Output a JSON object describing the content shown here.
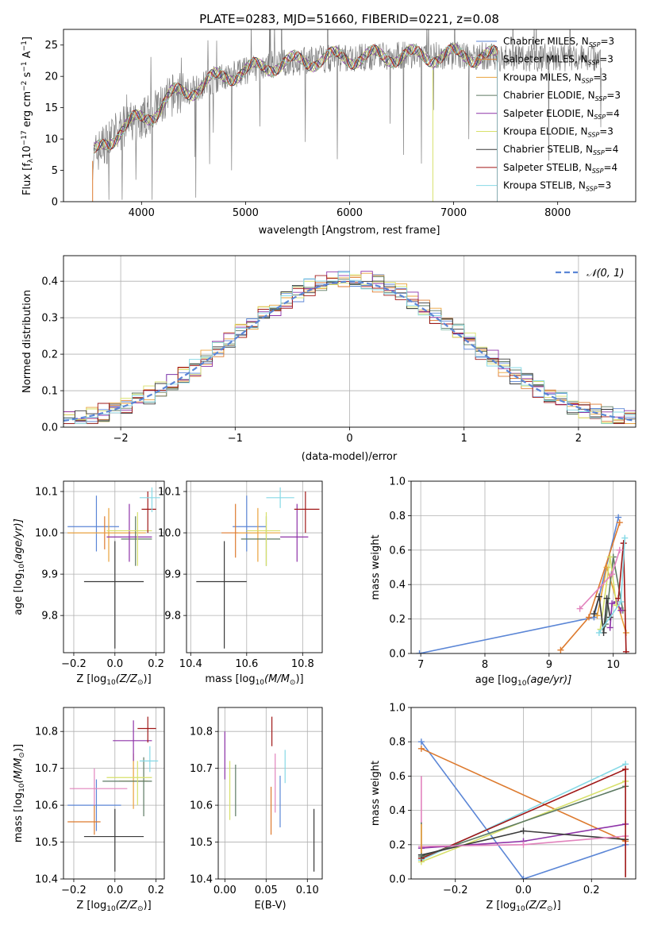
{
  "colors": {
    "Chabrier MILES": "#5b86d6",
    "Salpeter MILES": "#dd7a2e",
    "Kroupa MILES": "#e9a23b",
    "Chabrier ELODIE": "#5d7a63",
    "Salpeter ELODIE": "#8e33a8",
    "Kroupa ELODIE": "#d7e06a",
    "Chabrier STELIB": "#3a3a3a",
    "Salpeter STELIB": "#a01818",
    "Kroupa STELIB": "#86d9e6",
    "data": "#7f7f7f",
    "gauss": "#5b86d6",
    "grid": "#b0b0b0"
  },
  "chart_data": [
    {
      "id": "spectrum",
      "type": "line",
      "title": "PLATE=0283, MJD=51660, FIBERID=0221, z=0.08",
      "xlabel": "wavelength [Angstrom, rest frame]",
      "ylabel_parts": [
        "Flux [f",
        "λ",
        "10",
        "−17",
        " erg cm",
        "−2",
        " s",
        "−1",
        " A",
        "−1",
        "]"
      ],
      "xlim": [
        3250,
        8750
      ],
      "ylim": [
        0,
        27.5
      ],
      "xticks": [
        4000,
        5000,
        6000,
        7000,
        8000
      ],
      "yticks": [
        0,
        5,
        10,
        15,
        20,
        25
      ],
      "grid": false,
      "legend_position": "upper right",
      "legend": [
        {
          "model": "Chabrier MILES",
          "n": "3"
        },
        {
          "model": "Salpeter MILES",
          "n": "3"
        },
        {
          "model": "Kroupa MILES",
          "n": "3"
        },
        {
          "model": "Chabrier ELODIE",
          "n": "3"
        },
        {
          "model": "Salpeter ELODIE",
          "n": "4"
        },
        {
          "model": "Kroupa ELODIE",
          "n": "3"
        },
        {
          "model": "Chabrier STELIB",
          "n": "4"
        },
        {
          "model": "Salpeter STELIB",
          "n": "4"
        },
        {
          "model": "Kroupa STELIB",
          "n": "3"
        }
      ],
      "continuum_x": [
        3530,
        3600,
        3700,
        3800,
        3900,
        4000,
        4100,
        4300,
        4500,
        4700,
        4900,
        5100,
        5300,
        5500,
        5700,
        5900,
        6100,
        6300,
        6500,
        6700,
        6900,
        7100,
        7300,
        7420
      ],
      "continuum_y": [
        7,
        8.5,
        10,
        11.5,
        12.5,
        13.2,
        14,
        17,
        18,
        19.5,
        20.5,
        21.2,
        22,
        22.3,
        22.7,
        23,
        23,
        23.2,
        23.3,
        23.2,
        23.3,
        23.4,
        23.2,
        23
      ],
      "data_x_range": [
        3530,
        8420
      ]
    },
    {
      "id": "residuals",
      "type": "histogram",
      "xlabel": "(data-model)/error",
      "ylabel": "Normed distribution",
      "xlim": [
        -2.5,
        2.5
      ],
      "ylim": [
        0,
        0.47
      ],
      "xticks": [
        -2,
        -1,
        0,
        1,
        2
      ],
      "yticks": [
        0.0,
        0.1,
        0.2,
        0.3,
        0.4
      ],
      "grid": true,
      "legend_position": "upper right",
      "legend": [
        "𝒩(0, 1)"
      ],
      "bin_width": 0.1,
      "bin_start": -2.5,
      "gaussian": {
        "mu": 0,
        "sigma": 1
      }
    },
    {
      "id": "age-vs-z",
      "type": "errorbar",
      "xlabel": "Z [log",
      "xlabel_sub": "10",
      "xlabel_rest": "(Z/Z",
      "xlabel_end": ")]",
      "ylabel": "age  [log",
      "ylabel_sub": "10",
      "ylabel_rest": "(age/yr)]",
      "xlim": [
        -0.25,
        0.24
      ],
      "ylim": [
        9.71,
        10.125
      ],
      "xticks": [
        -0.2,
        0.0,
        0.2
      ],
      "yticks": [
        9.8,
        9.9,
        10.0,
        10.1
      ],
      "grid": true,
      "points": [
        {
          "m": "Chabrier MILES",
          "x": -0.09,
          "xe": [
            -0.23,
            0.02
          ],
          "y": 10.015,
          "ye": [
            9.955,
            10.09
          ]
        },
        {
          "m": "Salpeter MILES",
          "x": -0.05,
          "xe": [
            -0.23,
            0.08
          ],
          "y": 10.0,
          "ye": [
            9.96,
            10.04
          ]
        },
        {
          "m": "Kroupa MILES",
          "x": -0.03,
          "xe": [
            -0.23,
            0.15
          ],
          "y": 10.0,
          "ye": [
            9.93,
            10.06
          ]
        },
        {
          "m": "Chabrier ELODIE",
          "x": 0.1,
          "xe": [
            0.03,
            0.18
          ],
          "y": 9.985,
          "ye": [
            9.92,
            10.04
          ]
        },
        {
          "m": "Salpeter ELODIE",
          "x": 0.07,
          "xe": [
            -0.04,
            0.18
          ],
          "y": 9.99,
          "ye": [
            9.93,
            10.07
          ]
        },
        {
          "m": "Kroupa ELODIE",
          "x": 0.11,
          "xe": [
            -0.04,
            0.18
          ],
          "y": 10.005,
          "ye": [
            9.92,
            10.05
          ]
        },
        {
          "m": "Chabrier STELIB",
          "x": 0.0,
          "xe": [
            -0.15,
            0.14
          ],
          "y": 9.882,
          "ye": [
            9.72,
            9.98
          ]
        },
        {
          "m": "Salpeter STELIB",
          "x": 0.16,
          "xe": [
            0.13,
            0.2
          ],
          "y": 10.057,
          "ye": [
            10.0,
            10.1
          ]
        },
        {
          "m": "Kroupa STELIB",
          "x": 0.18,
          "xe": [
            0.12,
            0.22
          ],
          "y": 10.085,
          "ye": [
            10.05,
            10.11
          ]
        }
      ]
    },
    {
      "id": "age-vs-mass",
      "type": "errorbar",
      "xlabel": "mass [log",
      "xlabel_sub": "10",
      "xlabel_rest": "(M/M",
      "xlabel_end": ")]",
      "xlim": [
        10.385,
        10.87
      ],
      "ylim": [
        9.71,
        10.125
      ],
      "xticks": [
        10.4,
        10.6,
        10.8
      ],
      "yticks": [
        9.8,
        9.9,
        10.0,
        10.1
      ],
      "grid": true,
      "points": [
        {
          "m": "Chabrier MILES",
          "x": 10.6,
          "xe": [
            10.55,
            10.67
          ],
          "y": 10.015,
          "ye": [
            9.955,
            10.09
          ]
        },
        {
          "m": "Salpeter MILES",
          "x": 10.56,
          "xe": [
            10.51,
            10.64
          ],
          "y": 10.0,
          "ye": [
            9.94,
            10.07
          ]
        },
        {
          "m": "Kroupa MILES",
          "x": 10.64,
          "xe": [
            10.57,
            10.72
          ],
          "y": 10.0,
          "ye": [
            9.93,
            10.06
          ]
        },
        {
          "m": "Chabrier ELODIE",
          "x": 10.67,
          "xe": [
            10.58,
            10.72
          ],
          "y": 9.985,
          "ye": [
            9.92,
            10.04
          ]
        },
        {
          "m": "Salpeter ELODIE",
          "x": 10.78,
          "xe": [
            10.72,
            10.82
          ],
          "y": 9.99,
          "ye": [
            9.93,
            10.07
          ]
        },
        {
          "m": "Kroupa ELODIE",
          "x": 10.67,
          "xe": [
            10.6,
            10.72
          ],
          "y": 10.005,
          "ye": [
            9.92,
            10.05
          ]
        },
        {
          "m": "Chabrier STELIB",
          "x": 10.52,
          "xe": [
            10.42,
            10.6
          ],
          "y": 9.882,
          "ye": [
            9.72,
            9.98
          ]
        },
        {
          "m": "Salpeter STELIB",
          "x": 10.81,
          "xe": [
            10.77,
            10.86
          ],
          "y": 10.057,
          "ye": [
            10.0,
            10.1
          ]
        },
        {
          "m": "Kroupa STELIB",
          "x": 10.72,
          "xe": [
            10.67,
            10.77
          ],
          "y": 10.085,
          "ye": [
            10.06,
            10.11
          ]
        }
      ]
    },
    {
      "id": "weight-vs-age",
      "type": "line",
      "xlabel": "age  [log",
      "xlabel_sub": "10",
      "xlabel_rest": "(age/yr)]",
      "ylabel": "mass weight",
      "xlim": [
        6.85,
        10.35
      ],
      "ylim": [
        0,
        1.0
      ],
      "xticks": [
        7,
        8,
        9,
        10
      ],
      "yticks": [
        0.0,
        0.2,
        0.4,
        0.6,
        0.8,
        1.0
      ],
      "grid": true,
      "series": [
        {
          "m": "Chabrier MILES",
          "x": [
            6.98,
            9.7,
            10.08
          ],
          "y": [
            0.0,
            0.21,
            0.79
          ]
        },
        {
          "m": "Salpeter MILES",
          "x": [
            9.18,
            9.62,
            10.1
          ],
          "y": [
            0.02,
            0.21,
            0.76
          ]
        },
        {
          "m": "Kroupa MILES",
          "x": [
            9.75,
            9.9,
            10.2
          ],
          "y": [
            0.22,
            0.5,
            0.12
          ]
        },
        {
          "m": "Chabrier ELODIE",
          "x": [
            9.88,
            10.0,
            10.15
          ],
          "y": [
            0.17,
            0.56,
            0.25
          ]
        },
        {
          "m": "Salpeter ELODIE",
          "x": [
            9.95,
            9.98,
            10.05,
            10.12
          ],
          "y": [
            0.15,
            0.29,
            0.3,
            0.25
          ]
        },
        {
          "m": "Kroupa ELODIE",
          "x": [
            9.8,
            9.95,
            10.05
          ],
          "y": [
            0.14,
            0.56,
            0.28
          ]
        },
        {
          "m": "Chabrier STELIB",
          "x": [
            9.7,
            9.78,
            9.85,
            9.9,
            9.95
          ],
          "y": [
            0.23,
            0.33,
            0.12,
            0.32,
            0.21
          ]
        },
        {
          "m": "Salpeter STELIB",
          "x": [
            10.08,
            10.16,
            10.2
          ],
          "y": [
            0.32,
            0.64,
            0.01
          ]
        },
        {
          "m": "Kroupa STELIB",
          "x": [
            9.78,
            10.12,
            10.18
          ],
          "y": [
            0.12,
            0.3,
            0.67
          ]
        },
        {
          "m": "Pink",
          "x": [
            9.48,
            9.98,
            10.1
          ],
          "y": [
            0.26,
            0.46,
            0.6
          ]
        }
      ]
    },
    {
      "id": "mass-vs-z",
      "type": "errorbar",
      "xlabel": "Z [log",
      "xlabel_sub": "10",
      "xlabel_rest": "(Z/Z",
      "xlabel_end": ")]",
      "ylabel": "mass [log",
      "ylabel_sub": "10",
      "ylabel_rest": "(M/M",
      "ylabel_end": ")]",
      "xlim": [
        -0.25,
        0.24
      ],
      "ylim": [
        10.4,
        10.865
      ],
      "xticks": [
        -0.2,
        0.0,
        0.2
      ],
      "yticks": [
        10.4,
        10.5,
        10.6,
        10.7,
        10.8
      ],
      "grid": true,
      "points": [
        {
          "m": "Chabrier MILES",
          "x": -0.09,
          "xe": [
            -0.23,
            0.03
          ],
          "y": 10.6,
          "ye": [
            10.53,
            10.67
          ]
        },
        {
          "m": "Salpeter MILES",
          "x": -0.1,
          "xe": [
            -0.23,
            -0.07
          ],
          "y": 10.555,
          "ye": [
            10.52,
            10.6
          ]
        },
        {
          "m": "Kroupa MILES",
          "x": 0.09,
          "xe": [
            0.02,
            0.16
          ],
          "y": 10.665,
          "ye": [
            10.59,
            10.74
          ]
        },
        {
          "m": "Chabrier ELODIE",
          "x": 0.14,
          "xe": [
            -0.06,
            0.18
          ],
          "y": 10.665,
          "ye": [
            10.57,
            10.73
          ]
        },
        {
          "m": "Salpeter ELODIE",
          "x": 0.09,
          "xe": [
            -0.01,
            0.18
          ],
          "y": 10.775,
          "ye": [
            10.72,
            10.83
          ]
        },
        {
          "m": "Kroupa ELODIE",
          "x": 0.11,
          "xe": [
            -0.04,
            0.18
          ],
          "y": 10.675,
          "ye": [
            10.6,
            10.72
          ]
        },
        {
          "m": "Chabrier STELIB",
          "x": 0.0,
          "xe": [
            -0.15,
            0.14
          ],
          "y": 10.515,
          "ye": [
            10.42,
            10.59
          ]
        },
        {
          "m": "Salpeter STELIB",
          "x": 0.16,
          "xe": [
            0.11,
            0.2
          ],
          "y": 10.808,
          "ye": [
            10.77,
            10.84
          ]
        },
        {
          "m": "Kroupa STELIB",
          "x": 0.17,
          "xe": [
            0.12,
            0.21
          ],
          "y": 10.72,
          "ye": [
            10.69,
            10.76
          ]
        },
        {
          "m": "Pink",
          "x": -0.1,
          "xe": [
            -0.22,
            0.06
          ],
          "y": 10.645,
          "ye": [
            10.6,
            10.7
          ]
        }
      ]
    },
    {
      "id": "mass-vs-ebv",
      "type": "errorbar",
      "xlabel": "E(B-V)",
      "xlim": [
        -0.008,
        0.118
      ],
      "ylim": [
        10.4,
        10.865
      ],
      "xticks": [
        0.0,
        0.05,
        0.1
      ],
      "xticklabels": [
        "0.00",
        "0.05",
        "0.10"
      ],
      "yticks": [
        10.4,
        10.5,
        10.6,
        10.7,
        10.8
      ],
      "grid": true,
      "points": [
        {
          "m": "Salpeter ELODIE",
          "x": 0.0,
          "ye": [
            10.67,
            10.8
          ]
        },
        {
          "m": "Kroupa ELODIE",
          "x": 0.006,
          "ye": [
            10.56,
            10.72
          ]
        },
        {
          "m": "Chabrier ELODIE",
          "x": 0.013,
          "ye": [
            10.57,
            10.71
          ]
        },
        {
          "m": "Salpeter MILES",
          "x": 0.056,
          "ye": [
            10.52,
            10.65
          ]
        },
        {
          "m": "Salpeter STELIB",
          "x": 0.057,
          "ye": [
            10.76,
            10.84
          ]
        },
        {
          "m": "Pink",
          "x": 0.061,
          "ye": [
            10.58,
            10.74
          ]
        },
        {
          "m": "Chabrier MILES",
          "x": 0.067,
          "ye": [
            10.54,
            10.68
          ]
        },
        {
          "m": "Kroupa STELIB",
          "x": 0.073,
          "ye": [
            10.66,
            10.75
          ]
        },
        {
          "m": "Chabrier STELIB",
          "x": 0.108,
          "ye": [
            10.42,
            10.59
          ]
        }
      ]
    },
    {
      "id": "weight-vs-z",
      "type": "line",
      "xlabel": "Z [log",
      "xlabel_sub": "10",
      "xlabel_rest": "(Z/Z",
      "xlabel_end": ")]",
      "ylabel": "mass weight",
      "xlim": [
        -0.33,
        0.33
      ],
      "ylim": [
        0,
        1.0
      ],
      "xticks": [
        -0.2,
        0.0,
        0.2
      ],
      "yticks": [
        0.0,
        0.2,
        0.4,
        0.6,
        0.8,
        1.0
      ],
      "grid": true,
      "series": [
        {
          "m": "Chabrier MILES",
          "x": [
            -0.3,
            0.0,
            0.3
          ],
          "y": [
            0.8,
            0.0,
            0.2
          ]
        },
        {
          "m": "Salpeter MILES",
          "x": [
            -0.3,
            0.3
          ],
          "y": [
            0.76,
            0.22
          ]
        },
        {
          "m": "Kroupa STELIB",
          "x": [
            -0.3,
            0.3
          ],
          "y": [
            0.11,
            0.67
          ]
        },
        {
          "m": "Kroupa ELODIE",
          "x": [
            -0.3,
            0.3
          ],
          "y": [
            0.1,
            0.57
          ]
        },
        {
          "m": "Salpeter STELIB",
          "x": [
            -0.3,
            0.3
          ],
          "y": [
            0.12,
            0.64
          ]
        },
        {
          "m": "Chabrier ELODIE",
          "x": [
            -0.3,
            0.3
          ],
          "y": [
            0.13,
            0.54
          ]
        },
        {
          "m": "Salpeter ELODIE",
          "x": [
            -0.3,
            0.0,
            0.3
          ],
          "y": [
            0.18,
            0.22,
            0.32
          ]
        },
        {
          "m": "Chabrier STELIB",
          "x": [
            -0.3,
            0.0,
            0.3
          ],
          "y": [
            0.14,
            0.28,
            0.23
          ]
        },
        {
          "m": "Pink",
          "x": [
            -0.3,
            0.0,
            0.3
          ],
          "y": [
            0.19,
            0.2,
            0.25
          ]
        }
      ],
      "vertical_markers": [
        {
          "m": "Pink",
          "x": -0.3,
          "y": [
            0.19,
            0.6
          ]
        },
        {
          "m": "Chabrier ELODIE",
          "x": -0.3,
          "y": [
            0.13,
            0.33
          ]
        },
        {
          "m": "Kroupa MILES",
          "x": -0.3,
          "y": [
            0.15,
            0.32
          ]
        },
        {
          "m": "Salpeter STELIB",
          "x": 0.3,
          "y": [
            0.01,
            0.64
          ]
        }
      ]
    }
  ],
  "extra_colors": {
    "Pink": "#e283bd"
  }
}
